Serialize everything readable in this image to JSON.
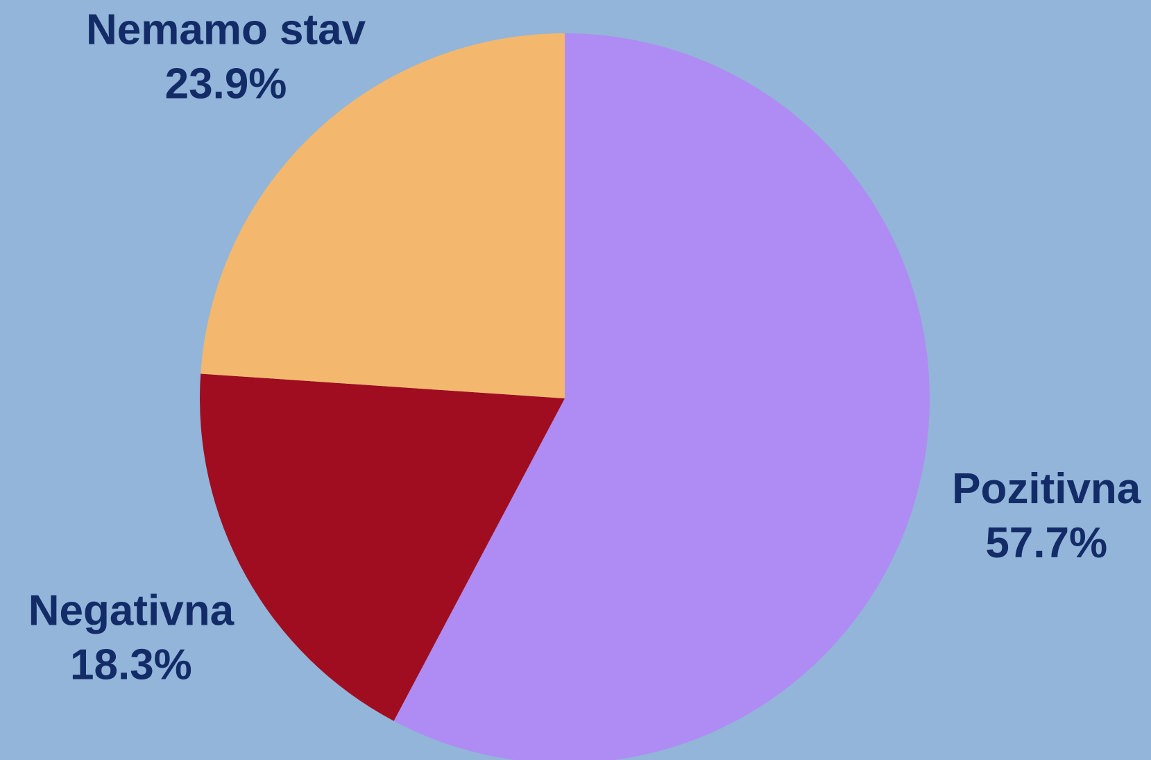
{
  "chart_data": {
    "type": "pie",
    "categories": [
      "Pozitivna",
      "Negativna",
      "Nemamo stav"
    ],
    "values": [
      57.7,
      18.3,
      23.9
    ],
    "value_labels": [
      "57.7%",
      "18.3%",
      "23.9%"
    ],
    "colors": [
      "#ae8cf3",
      "#a00d20",
      "#f3b86d"
    ]
  }
}
